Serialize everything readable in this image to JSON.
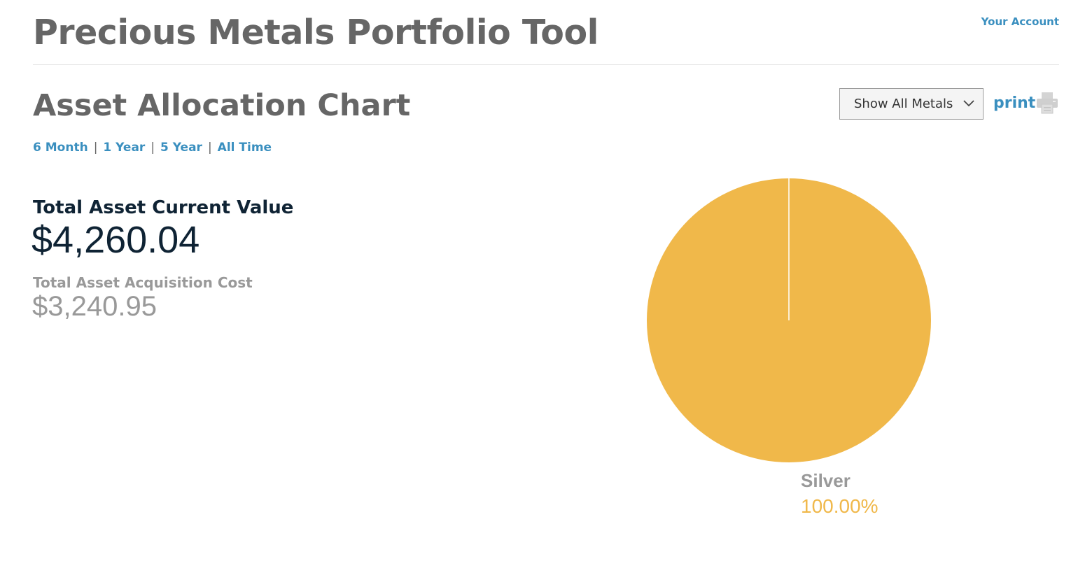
{
  "header": {
    "title": "Precious Metals Portfolio Tool",
    "account_link": "Your Account"
  },
  "section": {
    "title": "Asset Allocation Chart"
  },
  "controls": {
    "metal_filter": {
      "selected": "Show All Metals"
    },
    "print_label": "print"
  },
  "periods": [
    "6 Month",
    "1 Year",
    "5 Year",
    "All Time"
  ],
  "summary": {
    "current_label": "Total Asset Current Value",
    "current_value": "$4,260.04",
    "cost_label": "Total Asset Acquisition Cost",
    "cost_value": "$3,240.95"
  },
  "colors": {
    "link": "#3a8fbf",
    "silver": "#f0b84a"
  },
  "icons": {
    "print": "printer-icon",
    "dropdown": "chevron-down-icon"
  },
  "chart_data": {
    "type": "pie",
    "categories": [
      "Silver"
    ],
    "values": [
      100.0
    ],
    "labels": [
      "100.00%"
    ],
    "colors": [
      "#f0b84a"
    ],
    "legend": "none"
  }
}
